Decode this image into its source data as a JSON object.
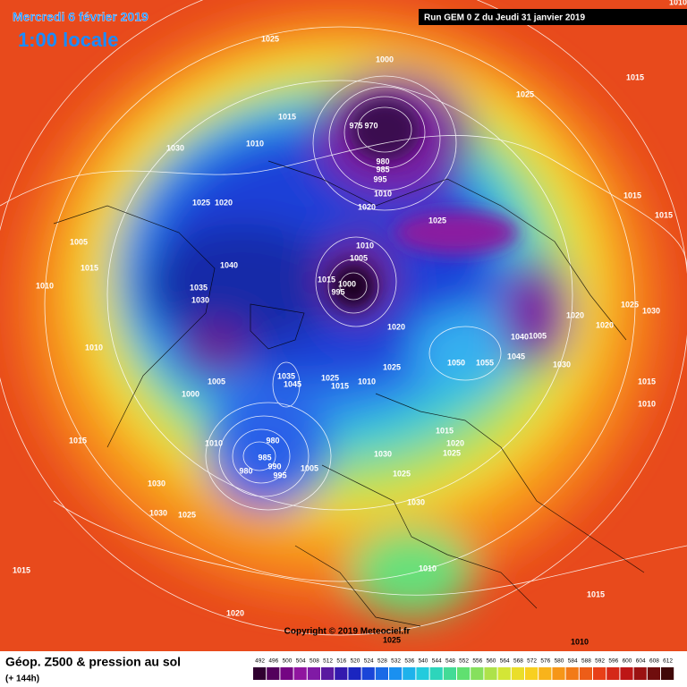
{
  "header": {
    "date": "Mercredi 6 février 2019",
    "time": "1:00 locale",
    "run": "Run GEM 0 Z du Jeudi 31 janvier 2019"
  },
  "map": {
    "isobar_labels": [
      "1025",
      "1000",
      "1015",
      "1025",
      "1015",
      "975",
      "970",
      "1010",
      "1030",
      "980",
      "985",
      "995",
      "1010",
      "1025",
      "1020",
      "1020",
      "1015",
      "1015",
      "1025",
      "1005",
      "1010",
      "1005",
      "1040",
      "1015",
      "1010",
      "1015",
      "1000",
      "995",
      "1035",
      "1030",
      "1025",
      "1030",
      "1020",
      "1020",
      "1020",
      "1040",
      "1005",
      "1010",
      "1050",
      "1055",
      "1045",
      "1030",
      "1025",
      "1035",
      "1045",
      "1015",
      "1005",
      "1025",
      "1015",
      "1010",
      "1000",
      "1010",
      "1015",
      "1015",
      "980",
      "1010",
      "1020",
      "1025",
      "1030",
      "985",
      "980",
      "990",
      "995",
      "1005",
      "1025",
      "1030",
      "1030",
      "1030",
      "1025",
      "1015",
      "1010",
      "1015",
      "1020",
      "1025",
      "1010",
      "1010"
    ]
  },
  "footer": {
    "copyright": "Copyright © 2019 Meteociel.fr",
    "title": "Géop. Z500 & pression au sol",
    "lead": "(+ 144h)"
  },
  "legend": {
    "labels": [
      492,
      496,
      500,
      504,
      508,
      512,
      516,
      520,
      524,
      528,
      532,
      536,
      540,
      544,
      548,
      552,
      556,
      560,
      564,
      568,
      572,
      576,
      580,
      584,
      588,
      592,
      596,
      600,
      604,
      608,
      612
    ]
  }
}
